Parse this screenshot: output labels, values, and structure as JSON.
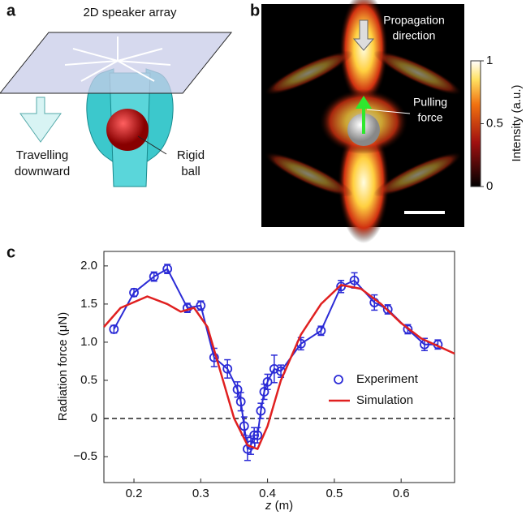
{
  "panel_labels": {
    "a": "a",
    "b": "b",
    "c": "c"
  },
  "panel_a": {
    "array_label": "2D speaker array",
    "motion_label_1": "Travelling",
    "motion_label_2": "downward",
    "ball_label_1": "Rigid",
    "ball_label_2": "ball"
  },
  "panel_b": {
    "propagation_1": "Propagation",
    "propagation_2": "direction",
    "force_1": "Pulling",
    "force_2": "force",
    "colorbar_label": "Intensity (a.u.)",
    "colorbar_ticks": [
      0,
      0.5,
      1
    ]
  },
  "chart_data": {
    "type": "errorbar-line",
    "y_label": "Radiation force (μN)",
    "x_label_var": "z",
    "x_label_unit": "(m)",
    "xlim": [
      0.155,
      0.68
    ],
    "xticks": [
      0.2,
      0.3,
      0.4,
      0.5,
      0.6
    ],
    "ylim": [
      -0.84,
      2.19
    ],
    "yticks": [
      {
        "value": -0.5,
        "label": "−0.5"
      },
      0,
      0.5,
      {
        "value": 1,
        "label": "1.0"
      },
      1.5,
      {
        "value": 2,
        "label": "2.0"
      }
    ],
    "reference_line": 0,
    "series": [
      {
        "name": "Experiment",
        "color": "#2b2bd6",
        "marker": "circle",
        "x": [
          0.17,
          0.2,
          0.23,
          0.25,
          0.28,
          0.3,
          0.32,
          0.34,
          0.355,
          0.36,
          0.365,
          0.37,
          0.375,
          0.38,
          0.385,
          0.39,
          0.395,
          0.4,
          0.41,
          0.42,
          0.45,
          0.48,
          0.51,
          0.53,
          0.56,
          0.58,
          0.61,
          0.635,
          0.655
        ],
        "values": [
          1.17,
          1.65,
          1.86,
          1.96,
          1.45,
          1.48,
          0.8,
          0.65,
          0.38,
          0.22,
          -0.1,
          -0.4,
          -0.35,
          -0.22,
          -0.22,
          0.1,
          0.35,
          0.48,
          0.65,
          0.62,
          0.98,
          1.15,
          1.73,
          1.81,
          1.52,
          1.43,
          1.17,
          0.97,
          0.97
        ],
        "errors": [
          0.05,
          0.05,
          0.06,
          0.06,
          0.06,
          0.06,
          0.12,
          0.12,
          0.1,
          0.12,
          0.12,
          0.15,
          0.12,
          0.1,
          0.1,
          0.1,
          0.1,
          0.1,
          0.18,
          0.08,
          0.08,
          0.06,
          0.08,
          0.1,
          0.1,
          0.06,
          0.06,
          0.08,
          0.06
        ]
      },
      {
        "name": "Simulation",
        "color": "#e02020",
        "marker": "line",
        "x": [
          0.155,
          0.18,
          0.22,
          0.25,
          0.27,
          0.29,
          0.31,
          0.33,
          0.35,
          0.37,
          0.385,
          0.4,
          0.42,
          0.45,
          0.48,
          0.51,
          0.54,
          0.57,
          0.6,
          0.63,
          0.68
        ],
        "values": [
          1.2,
          1.45,
          1.6,
          1.5,
          1.4,
          1.45,
          1.2,
          0.6,
          0.0,
          -0.35,
          -0.4,
          -0.1,
          0.5,
          1.1,
          1.5,
          1.75,
          1.7,
          1.5,
          1.25,
          1.05,
          0.85
        ]
      }
    ]
  }
}
